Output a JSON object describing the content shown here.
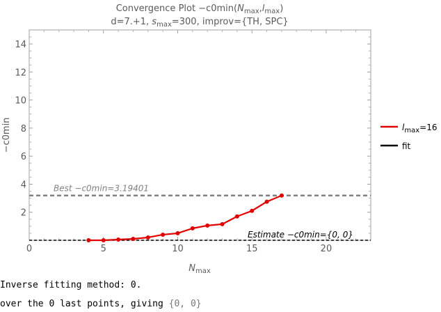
{
  "chart_data": {
    "type": "line",
    "title": "Convergence Plot −c0min(Nmax,lmax)",
    "subtitle": "d=7.+1, smax=300, improv={TH, SPC}",
    "xlabel": "Nmax",
    "ylabel": "−c0min",
    "xlim": [
      0,
      23
    ],
    "ylim": [
      0,
      15
    ],
    "x_ticks": [
      0,
      5,
      10,
      15,
      20
    ],
    "y_ticks": [
      2,
      4,
      6,
      8,
      10,
      12,
      14
    ],
    "legend_position": "right",
    "series": [
      {
        "name": "lmax=16",
        "color": "#e00000",
        "x": [
          4,
          5,
          6,
          7,
          8,
          9,
          10,
          11,
          12,
          13,
          14,
          15,
          16,
          17
        ],
        "y": [
          0.0,
          0.0,
          0.05,
          0.1,
          0.2,
          0.4,
          0.5,
          0.85,
          1.05,
          1.15,
          1.7,
          2.1,
          2.75,
          3.19
        ]
      },
      {
        "name": "fit",
        "color": "#000000",
        "x": [],
        "y": []
      }
    ],
    "reference_lines": [
      {
        "y": 3.19401,
        "label": "Best −c0min=3.19401",
        "color": "#808080"
      },
      {
        "y": 0,
        "label": "Estimate −c0min={0, 0}",
        "color": "#000000"
      }
    ]
  },
  "console": {
    "line1": "Inverse fitting method: 0.",
    "line2_prefix": "over the 0 last points, giving ",
    "line2_value": "{0, 0}"
  }
}
